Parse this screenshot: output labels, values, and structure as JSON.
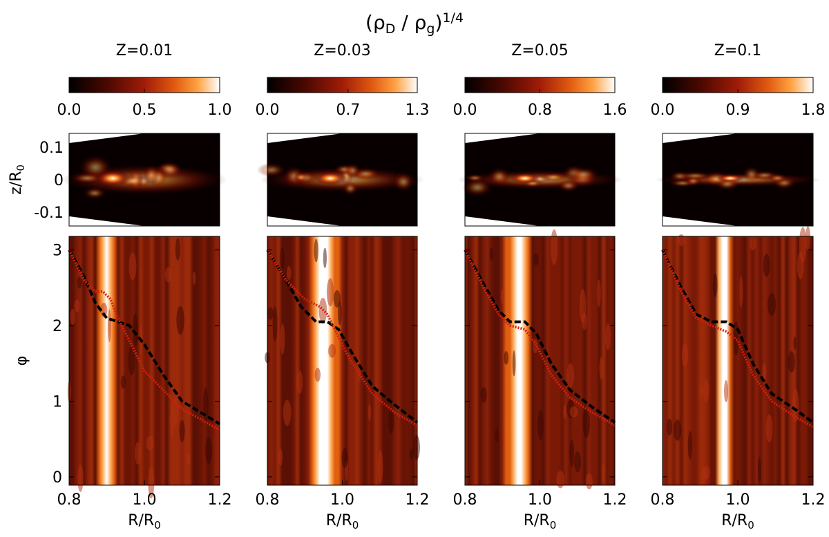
{
  "title": [
    "(ρ",
    "D",
    " / ρ",
    "g",
    ")",
    "1/4"
  ],
  "chart_data": [
    {
      "type": "heatmap",
      "title": "Z=0.01",
      "colorbar": {
        "lim": [
          0,
          1
        ],
        "ticks": [
          {
            "value": 0,
            "label": "0.0"
          },
          0.5,
          {
            "value": 1,
            "label": "1.0"
          }
        ]
      },
      "slice": {
        "ylabel": [
          "z/R",
          "0"
        ],
        "ylim": [
          -0.143,
          0.143
        ],
        "yticks": [
          0.1,
          0,
          -0.1
        ]
      },
      "map": {
        "ylabel": "φ",
        "xlabel": [
          "R/R",
          "0"
        ],
        "xlim": [
          0.8,
          1.2
        ],
        "ylim": [
          -0.11,
          3.18
        ],
        "yticks": [
          0,
          1,
          2,
          3
        ],
        "xticks": [
          0.8,
          {
            "value": 1,
            "label": "1.0"
          },
          1.2
        ],
        "lines": [
          {
            "color": "#000000",
            "style": "dashed",
            "x": [
              0.8,
              0.84,
              0.87,
              0.9,
              0.93,
              0.96,
              1.0,
              1.05,
              1.1,
              1.2
            ],
            "y": [
              3.0,
              2.65,
              2.3,
              2.1,
              2.05,
              2.0,
              1.75,
              1.35,
              1.0,
              0.7
            ]
          },
          {
            "color": "#d02010",
            "style": "dotted",
            "x": [
              0.8,
              0.84,
              0.87,
              0.89,
              0.91,
              0.93,
              0.96,
              1.0,
              1.1,
              1.2
            ],
            "y": [
              3.0,
              2.6,
              2.45,
              2.45,
              2.35,
              2.1,
              1.8,
              1.4,
              0.9,
              0.62
            ]
          }
        ]
      }
    },
    {
      "type": "heatmap",
      "title": "Z=0.03",
      "colorbar": {
        "lim": [
          0,
          1.3
        ],
        "ticks": [
          {
            "value": 0,
            "label": "0.0"
          },
          0.7,
          1.3
        ]
      },
      "slice": {
        "ylim": [
          -0.143,
          0.143
        ],
        "yticks": [
          0.1,
          0,
          -0.1
        ]
      },
      "map": {
        "xlabel": [
          "R/R",
          "0"
        ],
        "xlim": [
          0.8,
          1.2
        ],
        "ylim": [
          -0.11,
          3.18
        ],
        "yticks": [
          0,
          1,
          2,
          3
        ],
        "xticks": [
          0.8,
          {
            "value": 1,
            "label": "1.0"
          },
          1.2
        ],
        "lines": [
          {
            "color": "#000000",
            "style": "dashed",
            "x": [
              0.8,
              0.85,
              0.89,
              0.93,
              0.96,
              0.99,
              1.03,
              1.08,
              1.14,
              1.2
            ],
            "y": [
              3.0,
              2.6,
              2.25,
              2.05,
              2.05,
              1.95,
              1.6,
              1.2,
              0.95,
              0.72
            ]
          },
          {
            "color": "#d02010",
            "style": "dotted",
            "x": [
              0.8,
              0.85,
              0.9,
              0.94,
              0.96,
              0.98,
              1.02,
              1.08,
              1.14,
              1.2
            ],
            "y": [
              3.0,
              2.6,
              2.35,
              2.25,
              2.15,
              1.95,
              1.55,
              1.1,
              0.85,
              0.68
            ]
          }
        ]
      }
    },
    {
      "type": "heatmap",
      "title": "Z=0.05",
      "colorbar": {
        "lim": [
          0,
          1.6
        ],
        "ticks": [
          {
            "value": 0,
            "label": "0.0"
          },
          0.8,
          1.6
        ]
      },
      "slice": {
        "ylim": [
          -0.143,
          0.143
        ],
        "yticks": [
          0.1,
          0,
          -0.1
        ]
      },
      "map": {
        "xlabel": [
          "R/R",
          "0"
        ],
        "xlim": [
          0.8,
          1.2
        ],
        "ylim": [
          -0.11,
          3.18
        ],
        "yticks": [
          0,
          1,
          2,
          3
        ],
        "xticks": [
          0.8,
          {
            "value": 1,
            "label": "1.0"
          },
          1.2
        ],
        "lines": [
          {
            "color": "#000000",
            "style": "dashed",
            "x": [
              0.8,
              0.85,
              0.89,
              0.92,
              0.96,
              0.99,
              1.03,
              1.08,
              1.14,
              1.2
            ],
            "y": [
              3.0,
              2.55,
              2.2,
              2.05,
              2.05,
              1.9,
              1.5,
              1.15,
              0.92,
              0.72
            ]
          },
          {
            "color": "#d02010",
            "style": "dotted",
            "x": [
              0.8,
              0.85,
              0.89,
              0.92,
              0.96,
              0.99,
              1.03,
              1.08,
              1.14,
              1.2
            ],
            "y": [
              3.0,
              2.5,
              2.15,
              2.0,
              1.95,
              1.75,
              1.35,
              1.05,
              0.85,
              0.68
            ]
          }
        ]
      }
    },
    {
      "type": "heatmap",
      "title": "Z=0.1",
      "colorbar": {
        "lim": [
          0,
          1.8
        ],
        "ticks": [
          {
            "value": 0,
            "label": "0.0"
          },
          0.9,
          1.8
        ]
      },
      "slice": {
        "ylim": [
          -0.143,
          0.143
        ],
        "yticks": [
          0.1,
          0,
          -0.1
        ]
      },
      "map": {
        "xlabel": [
          "R/R",
          "0"
        ],
        "xlim": [
          0.8,
          1.2
        ],
        "ylim": [
          -0.11,
          3.18
        ],
        "yticks": [
          0,
          1,
          2,
          3
        ],
        "xticks": [
          0.8,
          {
            "value": 1,
            "label": "1.0"
          },
          1.2
        ],
        "lines": [
          {
            "color": "#000000",
            "style": "dashed",
            "x": [
              0.8,
              0.85,
              0.89,
              0.93,
              0.97,
              1.0,
              1.04,
              1.09,
              1.15,
              1.2
            ],
            "y": [
              3.0,
              2.5,
              2.15,
              2.05,
              2.05,
              1.95,
              1.5,
              1.1,
              0.9,
              0.72
            ]
          },
          {
            "color": "#d02010",
            "style": "dotted",
            "x": [
              0.8,
              0.85,
              0.89,
              0.93,
              0.97,
              1.0,
              1.04,
              1.09,
              1.15,
              1.2
            ],
            "y": [
              3.0,
              2.45,
              2.1,
              2.0,
              1.92,
              1.8,
              1.35,
              1.0,
              0.8,
              0.66
            ]
          }
        ]
      }
    }
  ]
}
